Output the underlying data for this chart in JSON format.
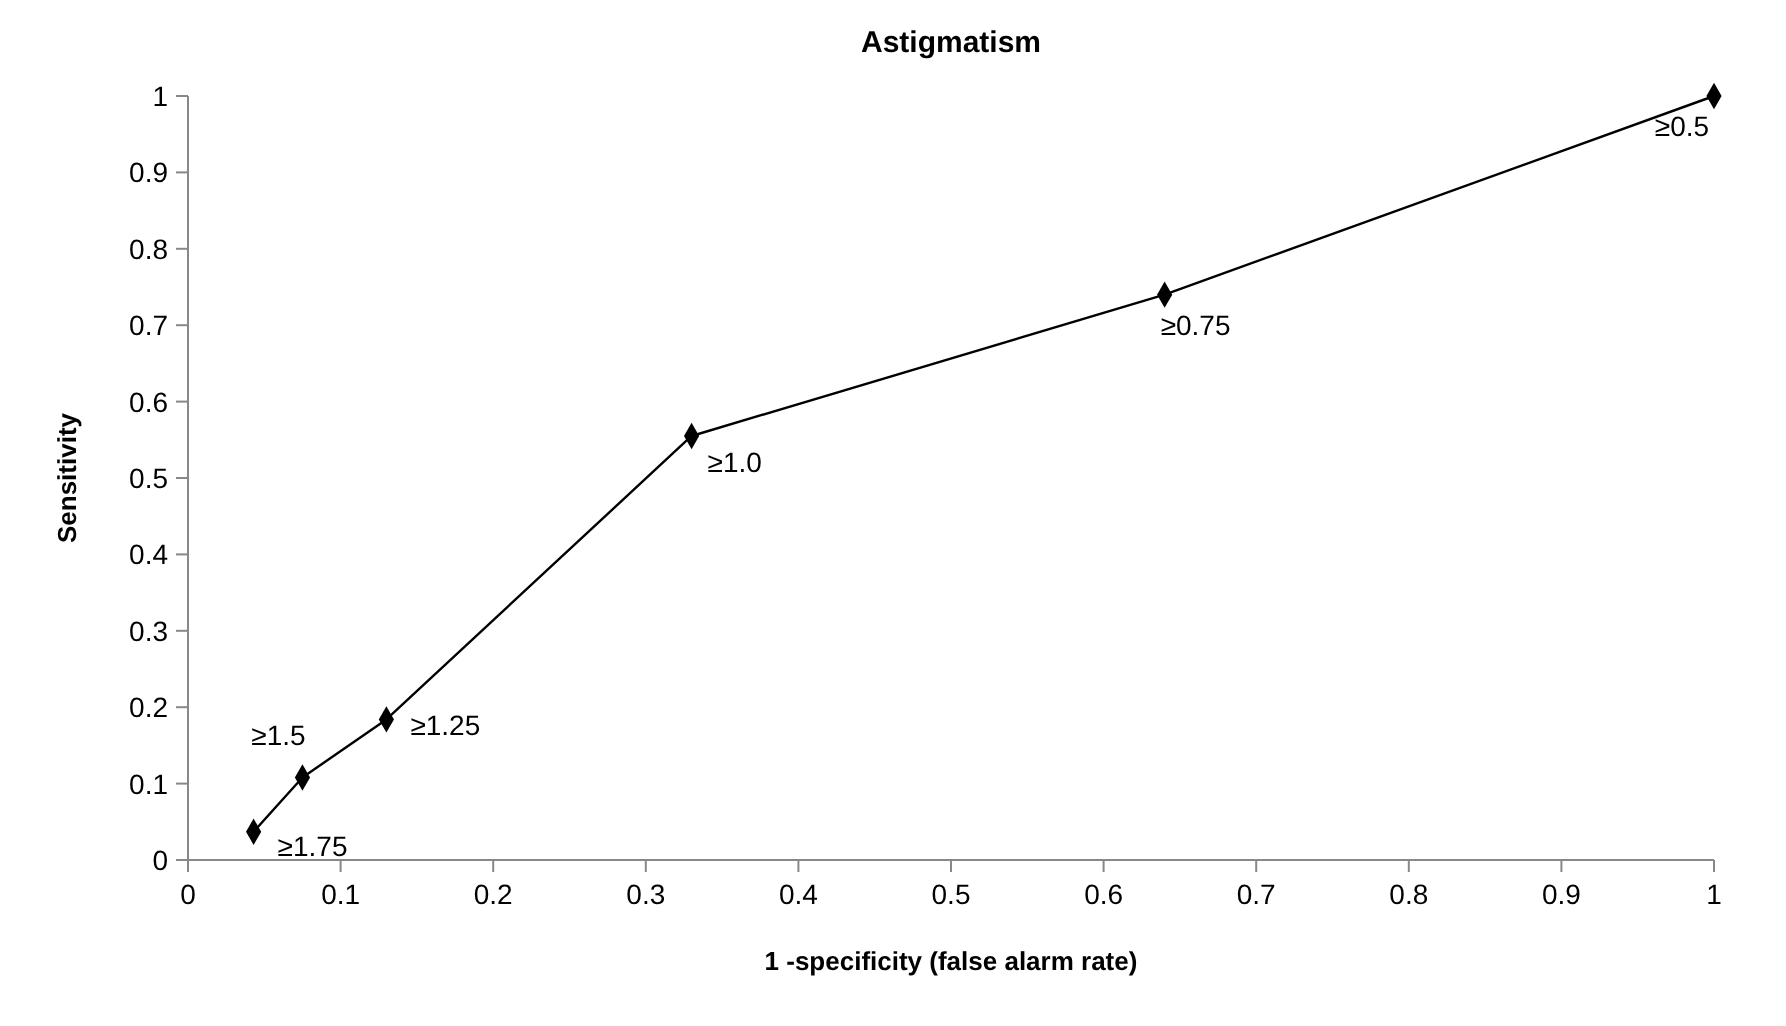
{
  "chart_data": {
    "type": "line",
    "title": "Astigmatism",
    "xlabel": "1 -specificity (false alarm rate)",
    "ylabel": "Sensitivity",
    "x": [
      0.043,
      0.075,
      0.13,
      0.33,
      0.64,
      1
    ],
    "series": [
      {
        "color": "#000000",
        "values": [
          0.037,
          0.108,
          0.184,
          0.555,
          0.74,
          1
        ]
      }
    ],
    "xlim": [
      0,
      1
    ],
    "xticks": [
      0,
      0.1,
      0.2,
      0.3,
      0.4,
      0.5,
      0.6,
      0.7,
      0.8,
      0.9,
      1
    ],
    "ylim": [
      0,
      1
    ],
    "yticks": [
      0,
      0.1,
      0.2,
      0.3,
      0.4,
      0.5,
      0.6,
      0.7,
      0.8,
      0.9,
      1
    ],
    "marker": "diamond",
    "line_style": "solid",
    "grid": false,
    "annotations": [
      {
        "text": "≥1.75",
        "x": 0.043,
        "y": 0.037
      },
      {
        "text": "≥1.5",
        "x": 0.075,
        "y": 0.108
      },
      {
        "text": "≥1.25",
        "x": 0.13,
        "y": 0.184
      },
      {
        "text": "≥1.0",
        "x": 0.33,
        "y": 0.555
      },
      {
        "text": "≥0.75",
        "x": 0.64,
        "y": 0.74
      },
      {
        "text": "≥0.5",
        "x": 1,
        "y": 1
      }
    ]
  }
}
